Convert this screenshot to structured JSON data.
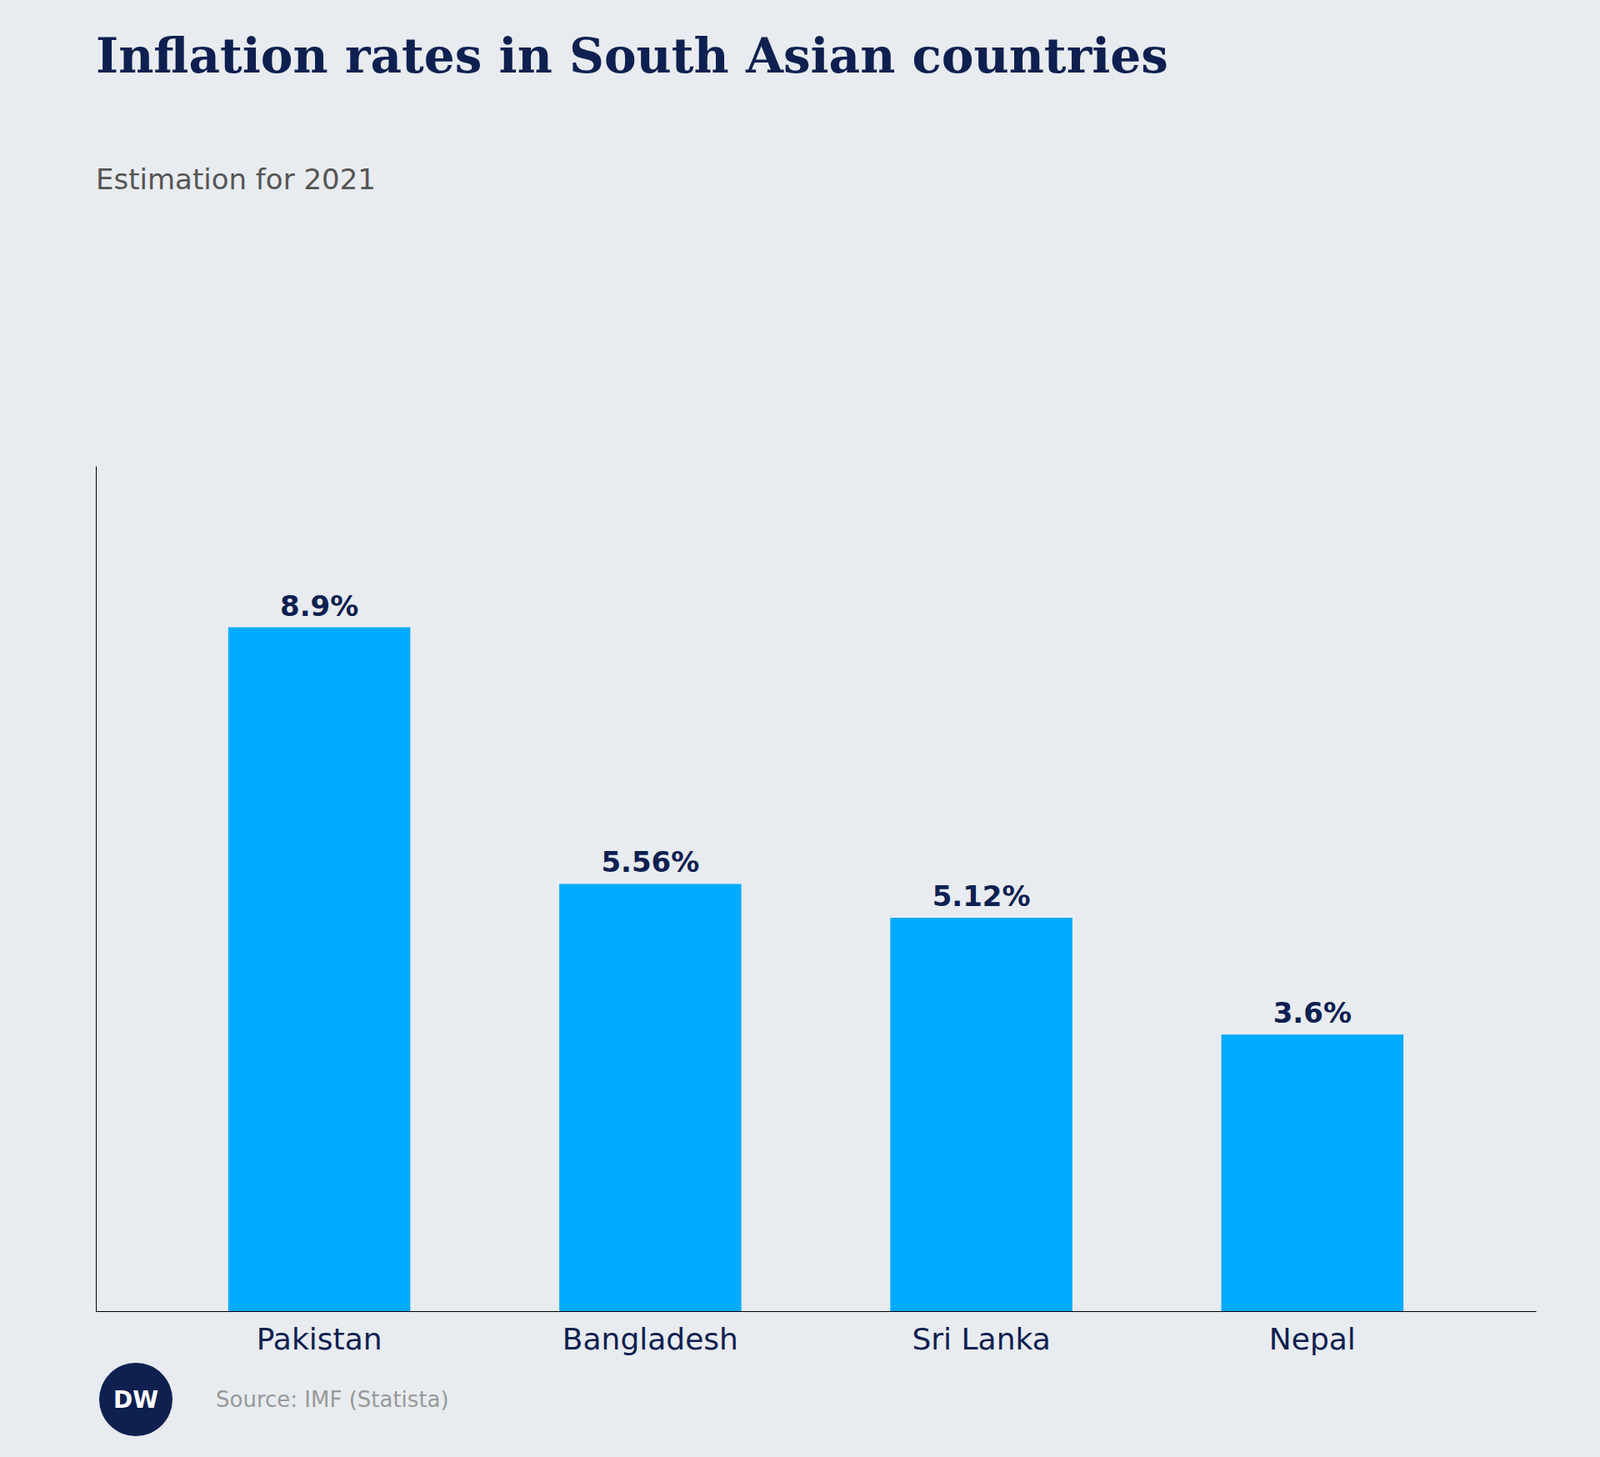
{
  "chart_data": {
    "type": "bar",
    "title": "Inflation rates in South Asian countries",
    "subtitle": "Estimation for 2021",
    "categories": [
      "Pakistan",
      "Bangladesh",
      "Sri Lanka",
      "Nepal"
    ],
    "values": [
      8.9,
      5.56,
      5.12,
      3.6
    ],
    "value_labels": [
      "8.9%",
      "5.56%",
      "5.12%",
      "3.6%"
    ],
    "data_labels": true,
    "color": "#00AAFF",
    "ylim": [
      0,
      11.0
    ],
    "tick_labels": "x",
    "grid": false,
    "annotations": [
      "DW",
      "Source: IMF (Statista)"
    ]
  }
}
